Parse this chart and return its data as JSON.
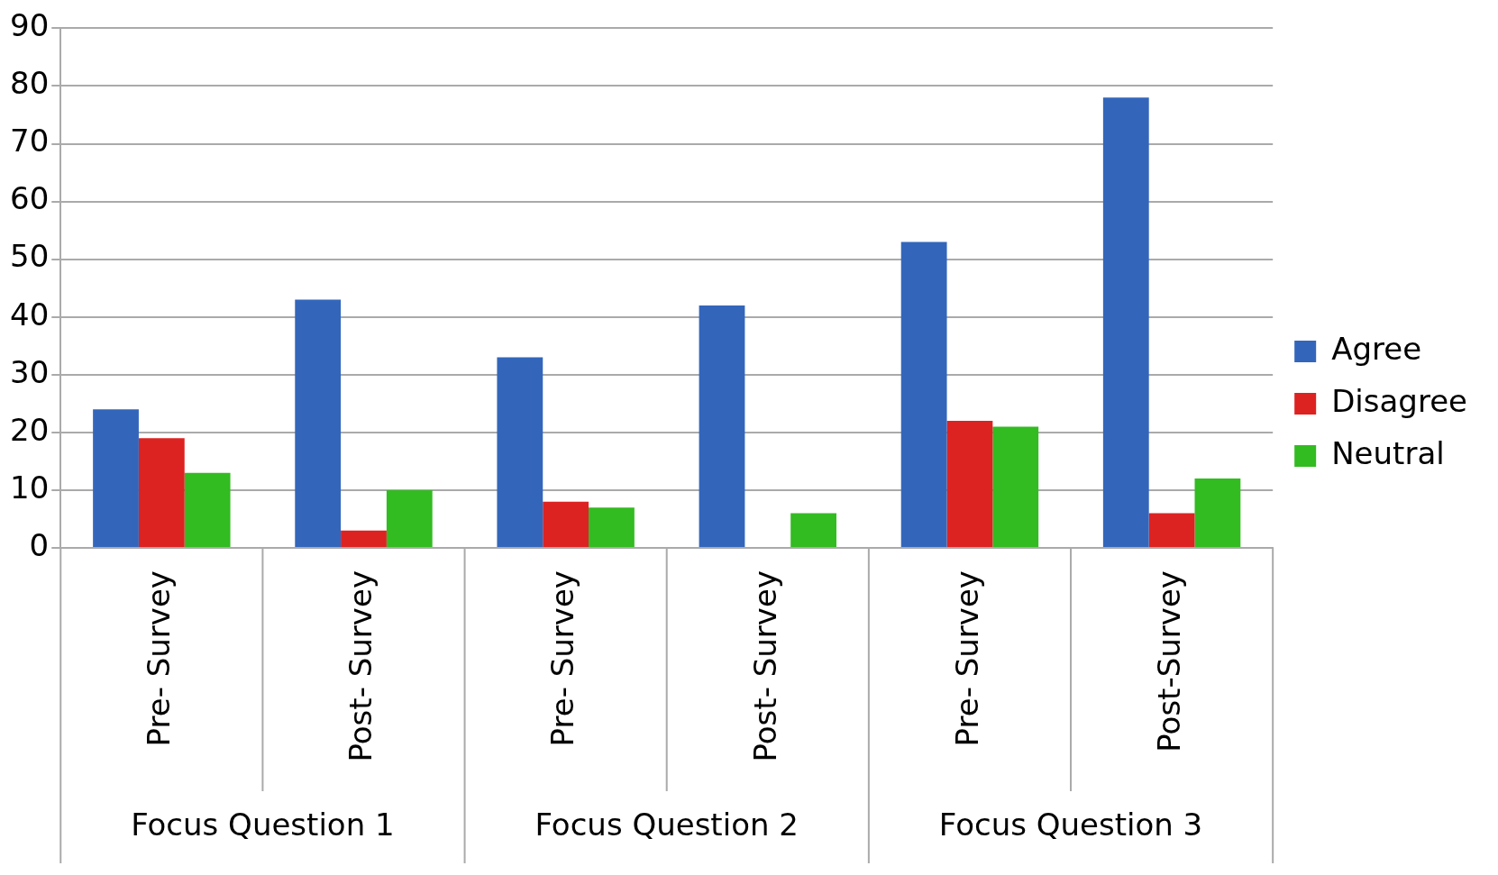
{
  "chart_data": {
    "type": "bar",
    "categories": [
      "Pre- Survey",
      "Post- Survey",
      "Pre- Survey",
      "Post- Survey",
      "Pre- Survey",
      "Post-Survey"
    ],
    "series": [
      {
        "name": "Agree",
        "color": "#3366bb",
        "values": [
          24,
          43,
          33,
          42,
          53,
          78
        ]
      },
      {
        "name": "Disagree",
        "color": "#dd2222",
        "values": [
          19,
          3,
          8,
          0,
          22,
          6
        ]
      },
      {
        "name": "Neutral",
        "color": "#33bb22",
        "values": [
          13,
          10,
          7,
          6,
          21,
          12
        ]
      }
    ],
    "annotations": [
      "Focus Question 1",
      "Focus Question 2",
      "Focus Question 3"
    ],
    "ylim": [
      0,
      90
    ],
    "yticks": [
      0,
      10,
      20,
      30,
      40,
      50,
      60,
      70,
      80,
      90
    ],
    "grid": "y",
    "legend": "right"
  }
}
